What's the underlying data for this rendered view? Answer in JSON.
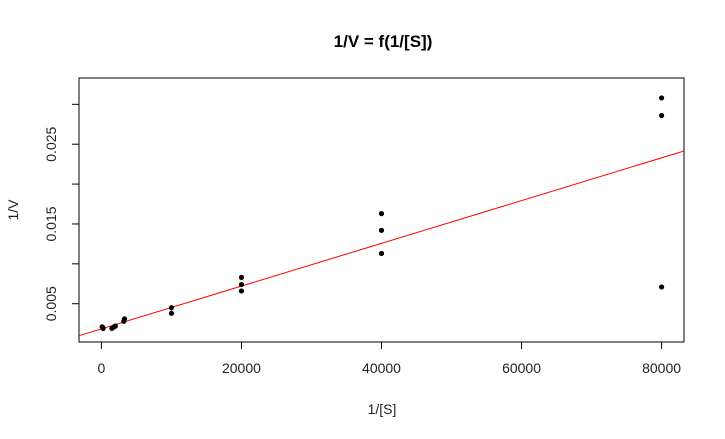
{
  "chart_data": {
    "type": "scatter",
    "title": "1/V = f(1/[S])",
    "xlabel": "1/[S]",
    "ylabel": "1/V",
    "xlim": [
      -3200,
      83200
    ],
    "ylim": [
      0.0002,
      0.0333
    ],
    "x_ticks": [
      0,
      20000,
      40000,
      60000,
      80000
    ],
    "y_ticks": [
      0.005,
      0.015,
      0.025
    ],
    "y_tick_format": "fixed3",
    "minor_y_ticks": [
      0.01,
      0.02,
      0.03
    ],
    "grid": false,
    "legend": "none",
    "point_color": "#000000",
    "line_color": "#ff0000",
    "points": [
      {
        "x": 100,
        "y": 0.0021
      },
      {
        "x": 200,
        "y": 0.002
      },
      {
        "x": 250,
        "y": 0.0019
      },
      {
        "x": 1500,
        "y": 0.0019
      },
      {
        "x": 1800,
        "y": 0.0021
      },
      {
        "x": 2000,
        "y": 0.0022
      },
      {
        "x": 3200,
        "y": 0.0028
      },
      {
        "x": 3300,
        "y": 0.0031
      },
      {
        "x": 10000,
        "y": 0.0045
      },
      {
        "x": 10000,
        "y": 0.0038
      },
      {
        "x": 20000,
        "y": 0.0083
      },
      {
        "x": 20000,
        "y": 0.0074
      },
      {
        "x": 20000,
        "y": 0.0066
      },
      {
        "x": 40000,
        "y": 0.0163
      },
      {
        "x": 40000,
        "y": 0.0142
      },
      {
        "x": 40000,
        "y": 0.0113
      },
      {
        "x": 80000,
        "y": 0.0308
      },
      {
        "x": 80000,
        "y": 0.0286
      },
      {
        "x": 80000,
        "y": 0.0071
      }
    ],
    "fit_line": {
      "intercept": 0.00185,
      "slope": 2.68e-07
    }
  }
}
